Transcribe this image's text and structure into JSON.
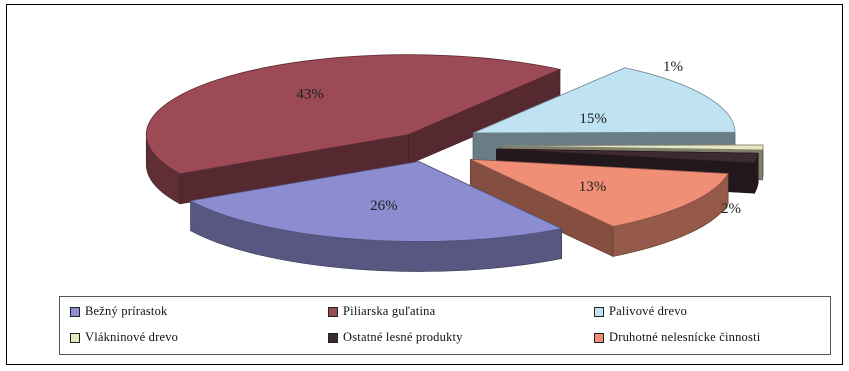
{
  "chart_data": {
    "type": "pie",
    "labels": [
      "Bežný prírastok",
      "Piliarska guľatina",
      "Palivové drevo",
      "Vlákninové drevo",
      "Ostatné lesné produkty",
      "Druhotné nelesnícke činnosti"
    ],
    "values": [
      26,
      43,
      15,
      1,
      2,
      13
    ],
    "data_labels": [
      "26%",
      "43%",
      "15%",
      "1%",
      "2%",
      "13%"
    ],
    "colors": [
      "#8C8CD0",
      "#9B4A56",
      "#BFE3F2",
      "#E7E7C4",
      "#3D2A32",
      "#F08F76"
    ],
    "legend_position": "bottom",
    "three_d": true
  },
  "legend": {
    "items": [
      {
        "label": "Bežný prírastok",
        "color": "#8C8CD0"
      },
      {
        "label": "Piliarska guľatina",
        "color": "#9B4A56"
      },
      {
        "label": "Palivové drevo",
        "color": "#BFE3F2"
      },
      {
        "label": "Vlákninové drevo",
        "color": "#E7E7C4"
      },
      {
        "label": "Ostatné lesné produkty",
        "color": "#3D2A32"
      },
      {
        "label": "Druhotné nelesnícke činnosti",
        "color": "#F08F76"
      }
    ]
  }
}
